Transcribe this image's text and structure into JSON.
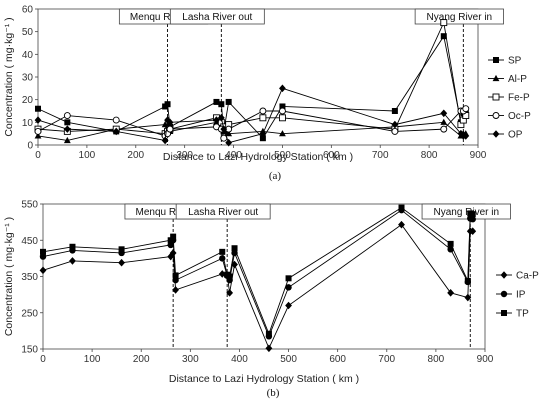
{
  "chart_data": [
    {
      "type": "line",
      "panel_label": "(a)",
      "xlabel": "Distance to Lazi Hydrology Station ( km )",
      "ylabel": "Concentration ( mg·kg⁻¹ )",
      "xlim": [
        0,
        900
      ],
      "ylim": [
        0,
        60
      ],
      "xticks": [
        0,
        100,
        200,
        300,
        400,
        500,
        600,
        700,
        800,
        900
      ],
      "yticks": [
        0,
        10,
        20,
        30,
        40,
        50,
        60
      ],
      "annotations": [
        {
          "label": "Menqu River in",
          "x": 265
        },
        {
          "label": "Lasha River out",
          "x": 375
        },
        {
          "label": "Nyang River in",
          "x": 870
        }
      ],
      "legend_position": "right",
      "series": [
        {
          "name": "SP",
          "marker": "square-filled",
          "x": [
            0,
            60,
            160,
            260,
            265,
            270,
            365,
            375,
            380,
            390,
            460,
            500,
            730,
            830,
            865,
            870,
            875
          ],
          "y": [
            16,
            10,
            6,
            17,
            18,
            8,
            19,
            18,
            6,
            19,
            3,
            17,
            15,
            48,
            10,
            14,
            15
          ]
        },
        {
          "name": "Al-P",
          "marker": "triangle-filled",
          "x": [
            0,
            60,
            160,
            260,
            265,
            270,
            365,
            375,
            380,
            390,
            460,
            500,
            730,
            830,
            865,
            870,
            875
          ],
          "y": [
            4,
            2,
            7,
            9,
            8,
            6,
            10,
            8,
            6,
            5,
            6,
            5,
            8,
            10,
            4,
            5,
            5
          ]
        },
        {
          "name": "Fe-P",
          "marker": "square-open",
          "x": [
            0,
            60,
            160,
            260,
            265,
            270,
            365,
            375,
            380,
            390,
            460,
            500,
            730,
            830,
            865,
            870,
            875
          ],
          "y": [
            7,
            6,
            7,
            5,
            6,
            7,
            12,
            10,
            8,
            9,
            12,
            12,
            7,
            54,
            9,
            11,
            13
          ]
        },
        {
          "name": "Oc-P",
          "marker": "circle-open",
          "x": [
            0,
            60,
            160,
            260,
            265,
            270,
            365,
            375,
            380,
            390,
            460,
            500,
            730,
            830,
            865,
            870,
            875
          ],
          "y": [
            6,
            13,
            11,
            4,
            5,
            7,
            8,
            7,
            3,
            7,
            15,
            15,
            6,
            7,
            15,
            15,
            16
          ]
        },
        {
          "name": "OP",
          "marker": "diamond-filled",
          "x": [
            0,
            60,
            160,
            260,
            265,
            270,
            365,
            375,
            380,
            390,
            460,
            500,
            730,
            830,
            865,
            870,
            875
          ],
          "y": [
            11,
            7,
            6,
            2,
            11,
            10,
            11,
            12,
            7,
            1,
            5,
            25,
            9,
            14,
            5,
            4,
            4
          ]
        }
      ]
    },
    {
      "type": "line",
      "panel_label": "(b)",
      "xlabel": "Distance to Lazi Hydrology Station ( km )",
      "ylabel": "Concentration ( mg·kg⁻¹ )",
      "xlim": [
        0,
        900
      ],
      "ylim": [
        150,
        550
      ],
      "xticks": [
        0,
        100,
        200,
        300,
        400,
        500,
        600,
        700,
        800,
        900
      ],
      "yticks": [
        150,
        250,
        350,
        450,
        550
      ],
      "annotations": [
        {
          "label": "Menqu River in",
          "x": 265
        },
        {
          "label": "Lasha River out",
          "x": 375
        },
        {
          "label": "Nyang River in",
          "x": 870
        }
      ],
      "legend_position": "right",
      "series": [
        {
          "name": "Ca-P",
          "marker": "diamond-filled",
          "x": [
            0,
            60,
            160,
            260,
            265,
            270,
            365,
            375,
            380,
            390,
            460,
            500,
            730,
            830,
            865,
            870,
            875
          ],
          "y": [
            367,
            393,
            388,
            405,
            415,
            313,
            357,
            355,
            305,
            383,
            152,
            270,
            493,
            305,
            292,
            475,
            475
          ]
        },
        {
          "name": "IP",
          "marker": "circle-filled",
          "x": [
            0,
            60,
            160,
            260,
            265,
            270,
            365,
            375,
            380,
            390,
            460,
            500,
            730,
            830,
            865,
            870,
            875
          ],
          "y": [
            405,
            422,
            415,
            437,
            450,
            340,
            400,
            352,
            340,
            415,
            185,
            320,
            533,
            425,
            335,
            510,
            508
          ]
        },
        {
          "name": "TP",
          "marker": "square-filled",
          "x": [
            0,
            60,
            160,
            260,
            265,
            270,
            365,
            375,
            380,
            390,
            460,
            500,
            730,
            830,
            865,
            870,
            875
          ],
          "y": [
            418,
            432,
            425,
            450,
            460,
            353,
            418,
            355,
            350,
            428,
            192,
            345,
            540,
            440,
            338,
            524,
            522
          ]
        }
      ]
    }
  ]
}
